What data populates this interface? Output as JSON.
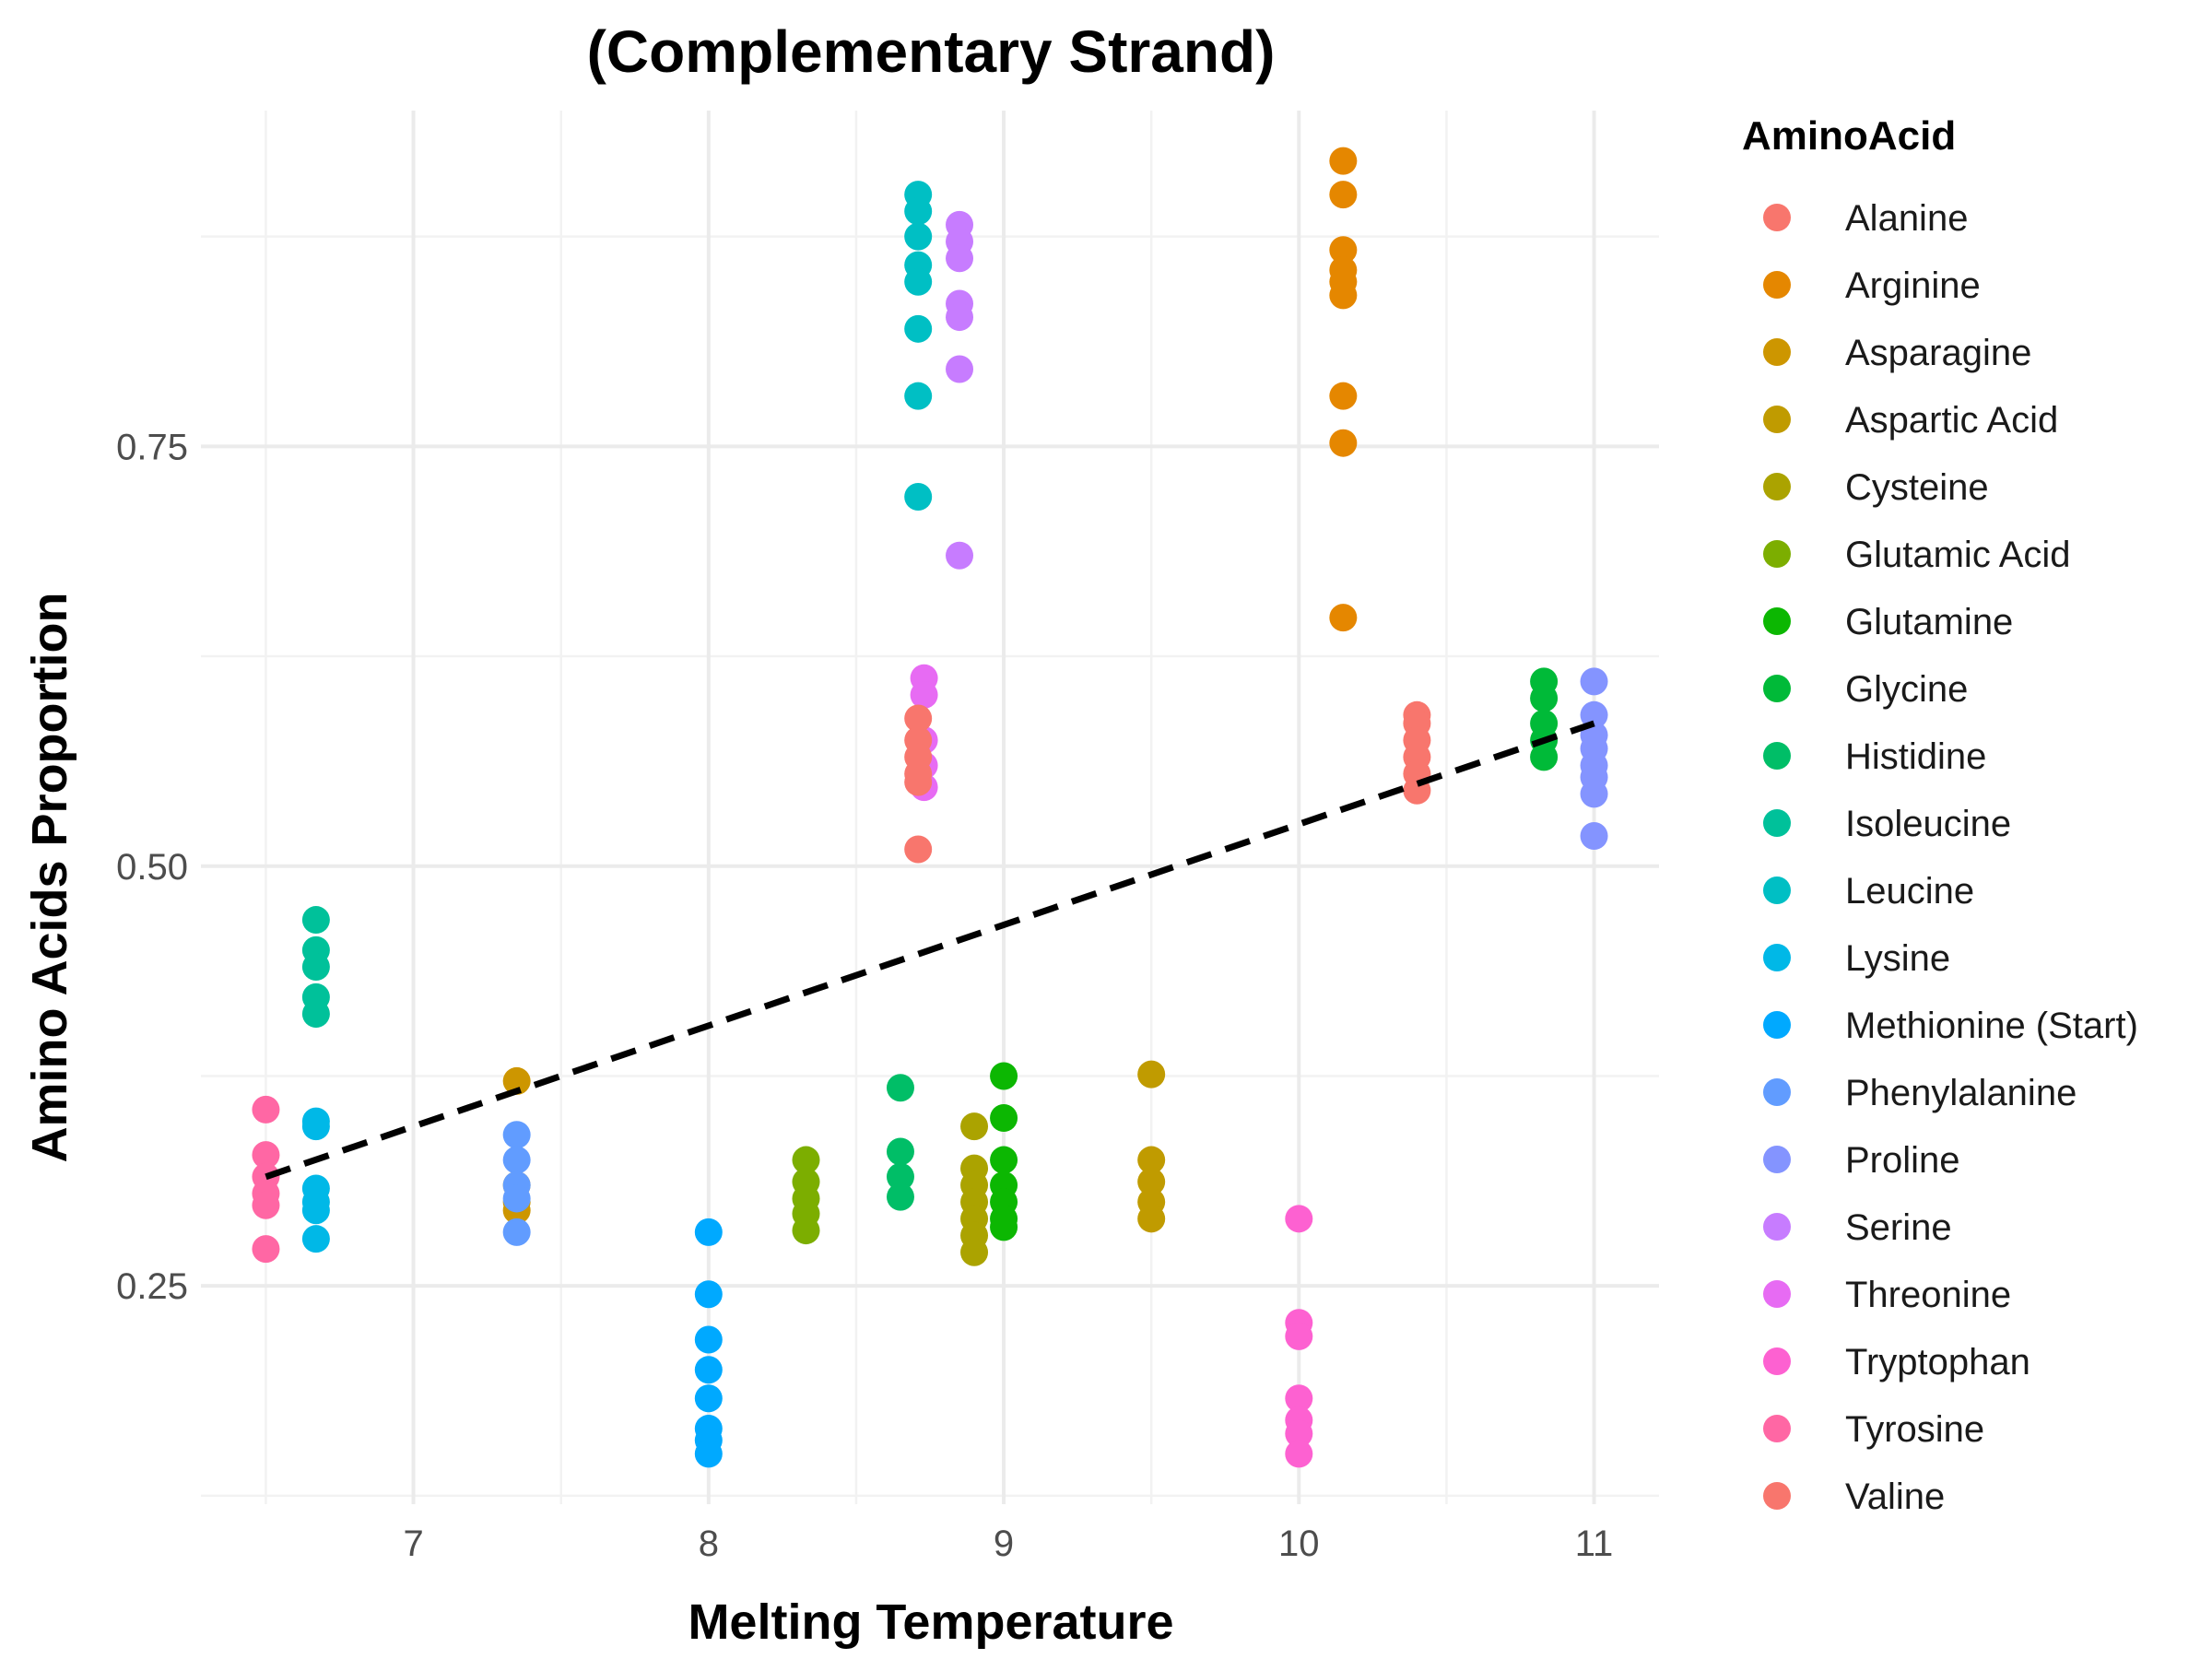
{
  "chart_data": {
    "type": "scatter",
    "title": "(Complementary Strand)",
    "xlabel": "Melting Temperature",
    "ylabel": "Amino Acids Proportion",
    "xlim": [
      6.28,
      11.22
    ],
    "ylim": [
      0.12,
      0.95
    ],
    "x_ticks": [
      7,
      8,
      9,
      10,
      11
    ],
    "x_tick_labels": [
      "7",
      "8",
      "9",
      "10",
      "11"
    ],
    "y_ticks": [
      0.25,
      0.5,
      0.75
    ],
    "y_tick_labels": [
      "0.25",
      "0.50",
      "0.75"
    ],
    "grid": true,
    "legend": {
      "title": "AminoAcid",
      "position": "right"
    },
    "trend_line": {
      "style": "dashed",
      "color": "#000000",
      "x": [
        6.5,
        11.0
      ],
      "y": [
        0.315,
        0.585
      ]
    },
    "series": [
      {
        "name": "Alanine",
        "color": "#F8766D",
        "x": 10.4,
        "values": [
          0.59,
          0.585,
          0.575,
          0.565,
          0.555,
          0.545
        ]
      },
      {
        "name": "Arginine",
        "color": "#E58700",
        "x": 10.15,
        "values": [
          0.92,
          0.9,
          0.867,
          0.855,
          0.848,
          0.84,
          0.78,
          0.752,
          0.648
        ]
      },
      {
        "name": "Asparagine",
        "color": "#CD9600",
        "x": 7.35,
        "values": [
          0.372,
          0.31,
          0.3,
          0.295
        ]
      },
      {
        "name": "Aspartic Acid",
        "color": "#C09B00",
        "x": 9.5,
        "values": [
          0.376,
          0.325,
          0.312,
          0.3,
          0.29
        ]
      },
      {
        "name": "Cysteine",
        "color": "#ABA300",
        "x": 8.9,
        "values": [
          0.345,
          0.32,
          0.31,
          0.3,
          0.29,
          0.28,
          0.27
        ]
      },
      {
        "name": "Glutamic Acid",
        "color": "#7CAE00",
        "x": 8.33,
        "values": [
          0.325,
          0.312,
          0.302,
          0.293,
          0.283
        ]
      },
      {
        "name": "Glutamine",
        "color": "#0CB702",
        "x": 9.0,
        "values": [
          0.375,
          0.35,
          0.325,
          0.31,
          0.3,
          0.29,
          0.285
        ]
      },
      {
        "name": "Glycine",
        "color": "#00BA38",
        "x": 10.83,
        "values": [
          0.61,
          0.6,
          0.585,
          0.575,
          0.565
        ]
      },
      {
        "name": "Histidine",
        "color": "#00BE67",
        "x": 8.65,
        "values": [
          0.368,
          0.33,
          0.315,
          0.303
        ]
      },
      {
        "name": "Isoleucine",
        "color": "#00C19A",
        "x": 6.67,
        "values": [
          0.468,
          0.45,
          0.44,
          0.422,
          0.412
        ]
      },
      {
        "name": "Leucine",
        "color": "#00BFC4",
        "x": 8.71,
        "values": [
          0.9,
          0.89,
          0.875,
          0.858,
          0.848,
          0.82,
          0.78,
          0.72
        ]
      },
      {
        "name": "Lysine",
        "color": "#00B8E7",
        "x": 6.67,
        "values": [
          0.348,
          0.345,
          0.308,
          0.3,
          0.295,
          0.278
        ]
      },
      {
        "name": "Methionine (Start)",
        "color": "#00A9FF",
        "x": 8.0,
        "values": [
          0.282,
          0.245,
          0.218,
          0.2,
          0.183,
          0.165,
          0.158,
          0.15
        ]
      },
      {
        "name": "Phenylalanine",
        "color": "#619CFF",
        "x": 7.35,
        "values": [
          0.34,
          0.325,
          0.31,
          0.302,
          0.282
        ]
      },
      {
        "name": "Proline",
        "color": "#8494FF",
        "x": 11.0,
        "values": [
          0.61,
          0.59,
          0.578,
          0.57,
          0.56,
          0.553,
          0.543,
          0.518
        ]
      },
      {
        "name": "Serine",
        "color": "#C77CFF",
        "x": 8.85,
        "values": [
          0.882,
          0.872,
          0.862,
          0.835,
          0.827,
          0.796,
          0.685
        ]
      },
      {
        "name": "Threonine",
        "color": "#E76BF3",
        "x": 8.73,
        "values": [
          0.612,
          0.602,
          0.575,
          0.56,
          0.547
        ]
      },
      {
        "name": "Tryptophan",
        "color": "#FD61D1",
        "x": 10.0,
        "values": [
          0.29,
          0.228,
          0.22,
          0.183,
          0.17,
          0.162,
          0.15
        ]
      },
      {
        "name": "Tyrosine",
        "color": "#FF67A4",
        "x": 6.5,
        "values": [
          0.355,
          0.328,
          0.315,
          0.305,
          0.298,
          0.272
        ]
      },
      {
        "name": "Valine",
        "color": "#F8766D",
        "x": 8.71,
        "values": [
          0.588,
          0.575,
          0.565,
          0.555,
          0.55,
          0.51
        ]
      }
    ]
  }
}
